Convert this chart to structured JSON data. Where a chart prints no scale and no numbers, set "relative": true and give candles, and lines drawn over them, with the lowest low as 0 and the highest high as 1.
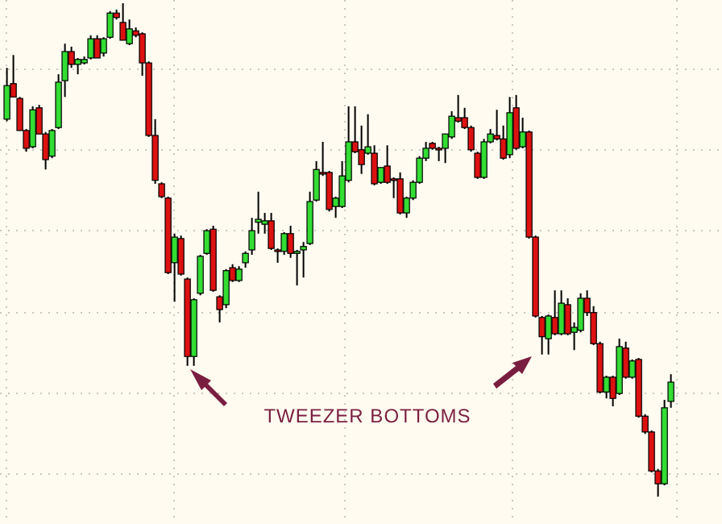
{
  "chart_data": {
    "type": "candlestick",
    "relative": true,
    "grid": true,
    "colors": [
      "#33dd33",
      "#dd1111",
      "#dd1111",
      "#dd1111",
      "#33dd33",
      "#dd1111",
      "#dd1111",
      "#33dd33",
      "#33dd33",
      "#33dd33",
      "#dd1111",
      "#33dd33",
      "#33dd33",
      "#33dd33",
      "#dd1111",
      "#33dd33",
      "#33dd33",
      "#dd1111",
      "#dd1111",
      "#33dd33",
      "#dd1111",
      "#dd1111",
      "#dd1111",
      "#dd1111",
      "#dd1111",
      "#dd1111",
      "#33dd33",
      "#dd1111",
      "#dd1111",
      "#33dd33",
      "#33dd33",
      "#33dd33",
      "#dd1111",
      "#dd1111",
      "#33dd33",
      "#dd1111",
      "#33dd33",
      "#33dd33",
      "#33dd33",
      "#33dd33",
      "#33dd33",
      "#dd1111",
      "#dd1111",
      "#33dd33",
      "#dd1111",
      "#33dd33",
      "#33dd33",
      "#33dd33",
      "#33dd33",
      "#dd1111",
      "#dd1111",
      "#33dd33",
      "#33dd33",
      "#33dd33",
      "#dd1111",
      "#dd1111",
      "#33dd33",
      "#dd1111",
      "#33dd33",
      "#dd1111",
      "#dd1111",
      "#dd1111",
      "#33dd33",
      "#33dd33",
      "#33dd33",
      "#33dd33",
      "#dd1111",
      "#dd1111",
      "#33dd33",
      "#33dd33",
      "#dd1111",
      "#dd1111",
      "#dd1111",
      "#dd1111",
      "#33dd33",
      "#33dd33",
      "#dd1111",
      "#dd1111",
      "#33dd33",
      "#dd1111",
      "#33dd33",
      "#dd1111",
      "#dd1111",
      "#dd1111",
      "#33dd33",
      "#dd1111",
      "#33dd33",
      "#dd1111",
      "#33dd33",
      "#33dd33",
      "#dd1111",
      "#dd1111",
      "#dd1111",
      "#33dd33",
      "#dd1111",
      "#33dd33",
      "#dd1111",
      "#33dd33",
      "#dd1111",
      "#dd1111",
      "#dd1111",
      "#dd1111",
      "#33dd33",
      "#33dd33"
    ],
    "annotations": [
      "TWEEZER BOTTOMS"
    ],
    "categories": [
      null,
      null,
      null,
      null,
      null,
      null,
      null,
      null,
      null,
      null,
      null,
      null,
      null,
      null,
      null,
      null,
      null,
      null,
      null,
      null,
      null,
      null,
      null,
      null,
      null,
      null,
      null,
      null,
      null,
      null,
      null,
      null,
      null,
      null,
      null,
      null,
      null,
      null,
      null,
      null,
      null,
      null,
      null,
      null,
      null,
      null,
      null,
      null,
      null,
      null,
      null,
      null,
      null,
      null,
      null,
      null,
      null,
      null,
      null,
      null,
      null,
      null,
      null,
      null,
      null,
      null,
      null,
      null,
      null,
      null,
      null,
      null,
      null,
      null,
      null,
      null,
      null,
      null,
      null,
      null,
      null,
      null,
      null,
      null,
      null,
      null,
      null,
      null,
      null,
      null,
      null,
      null,
      null,
      null,
      null,
      null,
      null,
      null,
      null,
      null,
      null,
      null,
      null,
      null
    ],
    "ohlc": [
      [
        0.765,
        0.869,
        0.761,
        0.833
      ],
      [
        0.837,
        0.895,
        0.81,
        0.81
      ],
      [
        0.807,
        0.81,
        0.742,
        0.742
      ],
      [
        0.742,
        0.745,
        0.699,
        0.706
      ],
      [
        0.709,
        0.791,
        0.706,
        0.784
      ],
      [
        0.788,
        0.794,
        0.735,
        0.735
      ],
      [
        0.735,
        0.739,
        0.663,
        0.683
      ],
      [
        0.69,
        0.745,
        0.686,
        0.742
      ],
      [
        0.748,
        0.856,
        0.745,
        0.84
      ],
      [
        0.843,
        0.918,
        0.81,
        0.902
      ],
      [
        0.902,
        0.912,
        0.869,
        0.876
      ],
      [
        0.876,
        0.889,
        0.856,
        0.886
      ],
      [
        0.879,
        0.892,
        0.876,
        0.886
      ],
      [
        0.889,
        0.935,
        0.886,
        0.928
      ],
      [
        0.928,
        0.935,
        0.889,
        0.889
      ],
      [
        0.899,
        0.931,
        0.892,
        0.928
      ],
      [
        0.931,
        0.984,
        0.928,
        0.98
      ],
      [
        0.98,
        0.987,
        0.967,
        0.971
      ],
      [
        0.961,
        1.0,
        0.925,
        0.925
      ],
      [
        0.918,
        0.967,
        0.915,
        0.948
      ],
      [
        0.944,
        0.951,
        0.931,
        0.935
      ],
      [
        0.938,
        0.941,
        0.853,
        0.879
      ],
      [
        0.879,
        0.882,
        0.729,
        0.732
      ],
      [
        0.732,
        0.765,
        0.634,
        0.641
      ],
      [
        0.634,
        0.637,
        0.605,
        0.608
      ],
      [
        0.605,
        0.608,
        0.451,
        0.454
      ],
      [
        0.474,
        0.533,
        0.395,
        0.526
      ],
      [
        0.523,
        0.529,
        0.448,
        0.451
      ],
      [
        0.441,
        0.444,
        0.265,
        0.284
      ],
      [
        0.284,
        0.402,
        0.265,
        0.399
      ],
      [
        0.412,
        0.49,
        0.408,
        0.487
      ],
      [
        0.493,
        0.542,
        0.49,
        0.539
      ],
      [
        0.542,
        0.549,
        0.415,
        0.418
      ],
      [
        0.405,
        0.408,
        0.353,
        0.379
      ],
      [
        0.389,
        0.461,
        0.382,
        0.458
      ],
      [
        0.464,
        0.471,
        0.435,
        0.438
      ],
      [
        0.438,
        0.467,
        0.435,
        0.461
      ],
      [
        0.474,
        0.497,
        0.464,
        0.493
      ],
      [
        0.5,
        0.565,
        0.49,
        0.539
      ],
      [
        0.556,
        0.618,
        0.533,
        0.562
      ],
      [
        0.552,
        0.575,
        0.533,
        0.559
      ],
      [
        0.559,
        0.575,
        0.5,
        0.503
      ],
      [
        0.5,
        0.503,
        0.474,
        0.497
      ],
      [
        0.497,
        0.536,
        0.49,
        0.533
      ],
      [
        0.533,
        0.549,
        0.484,
        0.493
      ],
      [
        0.493,
        0.5,
        0.428,
        0.497
      ],
      [
        0.5,
        0.516,
        0.444,
        0.507
      ],
      [
        0.513,
        0.618,
        0.51,
        0.598
      ],
      [
        0.601,
        0.68,
        0.598,
        0.663
      ],
      [
        0.657,
        0.719,
        0.65,
        0.654
      ],
      [
        0.657,
        0.66,
        0.578,
        0.582
      ],
      [
        0.588,
        0.608,
        0.565,
        0.605
      ],
      [
        0.588,
        0.68,
        0.585,
        0.65
      ],
      [
        0.641,
        0.791,
        0.637,
        0.719
      ],
      [
        0.719,
        0.791,
        0.696,
        0.699
      ],
      [
        0.703,
        0.752,
        0.654,
        0.673
      ],
      [
        0.696,
        0.775,
        0.693,
        0.709
      ],
      [
        0.696,
        0.712,
        0.631,
        0.634
      ],
      [
        0.637,
        0.667,
        0.634,
        0.667
      ],
      [
        0.67,
        0.712,
        0.634,
        0.637
      ],
      [
        0.644,
        0.647,
        0.605,
        0.641
      ],
      [
        0.644,
        0.657,
        0.572,
        0.575
      ],
      [
        0.575,
        0.608,
        0.565,
        0.605
      ],
      [
        0.605,
        0.641,
        0.601,
        0.637
      ],
      [
        0.637,
        0.69,
        0.634,
        0.686
      ],
      [
        0.686,
        0.719,
        0.68,
        0.706
      ],
      [
        0.716,
        0.719,
        0.703,
        0.706
      ],
      [
        0.706,
        0.709,
        0.68,
        0.703
      ],
      [
        0.706,
        0.735,
        0.676,
        0.735
      ],
      [
        0.729,
        0.781,
        0.725,
        0.771
      ],
      [
        0.768,
        0.814,
        0.758,
        0.761
      ],
      [
        0.768,
        0.788,
        0.745,
        0.748
      ],
      [
        0.748,
        0.752,
        0.699,
        0.703
      ],
      [
        0.696,
        0.699,
        0.644,
        0.647
      ],
      [
        0.647,
        0.725,
        0.644,
        0.719
      ],
      [
        0.719,
        0.745,
        0.716,
        0.735
      ],
      [
        0.732,
        0.784,
        0.722,
        0.725
      ],
      [
        0.725,
        0.752,
        0.683,
        0.686
      ],
      [
        0.693,
        0.81,
        0.686,
        0.778
      ],
      [
        0.788,
        0.814,
        0.703,
        0.706
      ],
      [
        0.709,
        0.768,
        0.706,
        0.739
      ],
      [
        0.739,
        0.742,
        0.523,
        0.526
      ],
      [
        0.526,
        0.529,
        0.363,
        0.366
      ],
      [
        0.363,
        0.366,
        0.288,
        0.324
      ],
      [
        0.32,
        0.369,
        0.288,
        0.366
      ],
      [
        0.363,
        0.418,
        0.327,
        0.33
      ],
      [
        0.33,
        0.418,
        0.327,
        0.392
      ],
      [
        0.389,
        0.402,
        0.327,
        0.33
      ],
      [
        0.333,
        0.353,
        0.297,
        0.343
      ],
      [
        0.337,
        0.412,
        0.333,
        0.402
      ],
      [
        0.402,
        0.418,
        0.366,
        0.373
      ],
      [
        0.373,
        0.386,
        0.307,
        0.31
      ],
      [
        0.31,
        0.314,
        0.209,
        0.212
      ],
      [
        0.212,
        0.245,
        0.199,
        0.242
      ],
      [
        0.242,
        0.245,
        0.183,
        0.199
      ],
      [
        0.209,
        0.32,
        0.206,
        0.304
      ],
      [
        0.301,
        0.314,
        0.239,
        0.242
      ],
      [
        0.242,
        0.278,
        0.239,
        0.275
      ],
      [
        0.278,
        0.281,
        0.16,
        0.163
      ],
      [
        0.163,
        0.167,
        0.127,
        0.131
      ],
      [
        0.131,
        0.134,
        0.049,
        0.052
      ],
      [
        0.052,
        0.056,
        0.0,
        0.026
      ],
      [
        0.026,
        0.196,
        0.023,
        0.18
      ],
      [
        0.193,
        0.248,
        0.18,
        0.232
      ]
    ]
  }
}
